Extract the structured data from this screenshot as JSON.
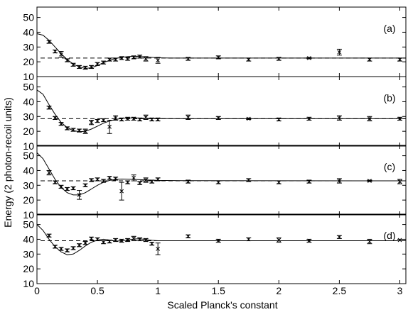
{
  "chart_data": {
    "type": "scatter",
    "xlabel": "Scaled Planck's constant",
    "ylabel": "Energy (2 photon-recoil units)",
    "x_ticks": [
      "0",
      "0.5",
      "1",
      "1.5",
      "2",
      "2.5",
      "3"
    ],
    "y_ticks": [
      "10",
      "20",
      "30",
      "40",
      "50"
    ],
    "xlim": [
      0,
      3.05
    ],
    "ylim": [
      10,
      57
    ],
    "grid": false,
    "panels": [
      {
        "label": "(a)",
        "asymptote": 22.5,
        "curve": [
          [
            0,
            39
          ],
          [
            0.05,
            38
          ],
          [
            0.1,
            34.5
          ],
          [
            0.15,
            30
          ],
          [
            0.2,
            25.5
          ],
          [
            0.25,
            21.5
          ],
          [
            0.3,
            18.5
          ],
          [
            0.35,
            16.5
          ],
          [
            0.4,
            15.5
          ],
          [
            0.45,
            16
          ],
          [
            0.5,
            17.5
          ],
          [
            0.55,
            19.5
          ],
          [
            0.6,
            21
          ],
          [
            0.65,
            22.3
          ],
          [
            0.7,
            23
          ],
          [
            0.75,
            23.5
          ],
          [
            0.8,
            23.7
          ],
          [
            0.85,
            23.6
          ],
          [
            0.9,
            23.3
          ],
          [
            0.95,
            23
          ],
          [
            1.0,
            22.7
          ],
          [
            1.1,
            22.5
          ],
          [
            3.05,
            22.5
          ]
        ],
        "points": [
          {
            "x": 0.1,
            "y": 33.5,
            "err": 1
          },
          {
            "x": 0.15,
            "y": 27,
            "err": 1
          },
          {
            "x": 0.2,
            "y": 25,
            "err": 2
          },
          {
            "x": 0.25,
            "y": 21,
            "err": 1
          },
          {
            "x": 0.3,
            "y": 18,
            "err": 1
          },
          {
            "x": 0.35,
            "y": 16.5,
            "err": 1
          },
          {
            "x": 0.4,
            "y": 16,
            "err": 1
          },
          {
            "x": 0.45,
            "y": 16.5,
            "err": 1
          },
          {
            "x": 0.5,
            "y": 18.5,
            "err": 1
          },
          {
            "x": 0.55,
            "y": 19.5,
            "err": 1
          },
          {
            "x": 0.6,
            "y": 21.5,
            "err": 1
          },
          {
            "x": 0.65,
            "y": 21.5,
            "err": 1
          },
          {
            "x": 0.7,
            "y": 22.5,
            "err": 1
          },
          {
            "x": 0.75,
            "y": 22,
            "err": 1
          },
          {
            "x": 0.8,
            "y": 23,
            "err": 1
          },
          {
            "x": 0.85,
            "y": 23.5,
            "err": 1
          },
          {
            "x": 0.9,
            "y": 22,
            "err": 1.5
          },
          {
            "x": 1.0,
            "y": 21,
            "err": 2
          },
          {
            "x": 1.25,
            "y": 22,
            "err": 1
          },
          {
            "x": 1.5,
            "y": 23,
            "err": 1
          },
          {
            "x": 1.75,
            "y": 21.5,
            "err": 1
          },
          {
            "x": 2.0,
            "y": 22,
            "err": 1
          },
          {
            "x": 2.25,
            "y": 22.5,
            "err": 0.5
          },
          {
            "x": 2.5,
            "y": 26.5,
            "err": 2
          },
          {
            "x": 2.75,
            "y": 21.5,
            "err": 1
          },
          {
            "x": 3.0,
            "y": 21.5,
            "err": 1
          }
        ]
      },
      {
        "label": "(b)",
        "asymptote": 28.5,
        "curve": [
          [
            0,
            48
          ],
          [
            0.05,
            45
          ],
          [
            0.1,
            38
          ],
          [
            0.15,
            31.5
          ],
          [
            0.2,
            26
          ],
          [
            0.25,
            22.5
          ],
          [
            0.3,
            20.5
          ],
          [
            0.35,
            19.7
          ],
          [
            0.4,
            20
          ],
          [
            0.45,
            21.5
          ],
          [
            0.5,
            23.5
          ],
          [
            0.55,
            25.5
          ],
          [
            0.6,
            27
          ],
          [
            0.65,
            28
          ],
          [
            0.7,
            28.7
          ],
          [
            0.75,
            29
          ],
          [
            0.8,
            29
          ],
          [
            0.9,
            28.8
          ],
          [
            1.0,
            28.6
          ],
          [
            1.2,
            28.5
          ],
          [
            3.05,
            28.5
          ]
        ],
        "points": [
          {
            "x": 0.1,
            "y": 36,
            "err": 1
          },
          {
            "x": 0.15,
            "y": 29,
            "err": 1
          },
          {
            "x": 0.2,
            "y": 25,
            "err": 1
          },
          {
            "x": 0.25,
            "y": 22,
            "err": 1
          },
          {
            "x": 0.3,
            "y": 21,
            "err": 1
          },
          {
            "x": 0.35,
            "y": 20.5,
            "err": 1
          },
          {
            "x": 0.4,
            "y": 20,
            "err": 1.5
          },
          {
            "x": 0.45,
            "y": 26,
            "err": 1.5
          },
          {
            "x": 0.5,
            "y": 27,
            "err": 1
          },
          {
            "x": 0.55,
            "y": 27.5,
            "err": 1
          },
          {
            "x": 0.6,
            "y": 23,
            "err": 4.5
          },
          {
            "x": 0.65,
            "y": 29,
            "err": 1.5
          },
          {
            "x": 0.7,
            "y": 28,
            "err": 1
          },
          {
            "x": 0.75,
            "y": 28.5,
            "err": 1
          },
          {
            "x": 0.8,
            "y": 28.5,
            "err": 1
          },
          {
            "x": 0.85,
            "y": 28,
            "err": 1
          },
          {
            "x": 0.9,
            "y": 29.5,
            "err": 1.5
          },
          {
            "x": 0.95,
            "y": 28,
            "err": 1
          },
          {
            "x": 1.0,
            "y": 28,
            "err": 1
          },
          {
            "x": 1.25,
            "y": 29.5,
            "err": 1.5
          },
          {
            "x": 1.5,
            "y": 29,
            "err": 1
          },
          {
            "x": 1.75,
            "y": 28.5,
            "err": 0.5
          },
          {
            "x": 2.0,
            "y": 28,
            "err": 1
          },
          {
            "x": 2.25,
            "y": 28.5,
            "err": 1
          },
          {
            "x": 2.5,
            "y": 29,
            "err": 1.5
          },
          {
            "x": 2.75,
            "y": 28.5,
            "err": 1.5
          },
          {
            "x": 3.0,
            "y": 28.5,
            "err": 1
          }
        ]
      },
      {
        "label": "(c)",
        "asymptote": 33,
        "curve": [
          [
            0,
            52
          ],
          [
            0.05,
            48
          ],
          [
            0.1,
            41
          ],
          [
            0.15,
            34
          ],
          [
            0.2,
            28.5
          ],
          [
            0.25,
            25
          ],
          [
            0.3,
            23.5
          ],
          [
            0.35,
            23.5
          ],
          [
            0.4,
            25
          ],
          [
            0.45,
            27.5
          ],
          [
            0.5,
            30
          ],
          [
            0.55,
            32
          ],
          [
            0.6,
            33.3
          ],
          [
            0.65,
            34
          ],
          [
            0.7,
            34.2
          ],
          [
            0.8,
            34
          ],
          [
            0.9,
            33.6
          ],
          [
            1.0,
            33.3
          ],
          [
            1.2,
            33.1
          ],
          [
            3.05,
            33
          ]
        ],
        "points": [
          {
            "x": 0.1,
            "y": 38.5,
            "err": 1.5
          },
          {
            "x": 0.15,
            "y": 32,
            "err": 1
          },
          {
            "x": 0.2,
            "y": 29,
            "err": 1
          },
          {
            "x": 0.25,
            "y": 27.5,
            "err": 1
          },
          {
            "x": 0.3,
            "y": 28,
            "err": 1
          },
          {
            "x": 0.35,
            "y": 23.5,
            "err": 3
          },
          {
            "x": 0.4,
            "y": 30,
            "err": 1
          },
          {
            "x": 0.45,
            "y": 33.5,
            "err": 1
          },
          {
            "x": 0.5,
            "y": 34,
            "err": 1
          },
          {
            "x": 0.55,
            "y": 33,
            "err": 1
          },
          {
            "x": 0.6,
            "y": 35,
            "err": 1
          },
          {
            "x": 0.65,
            "y": 34.5,
            "err": 1
          },
          {
            "x": 0.7,
            "y": 26,
            "err": 6
          },
          {
            "x": 0.75,
            "y": 32,
            "err": 1
          },
          {
            "x": 0.8,
            "y": 35,
            "err": 2
          },
          {
            "x": 0.85,
            "y": 31.5,
            "err": 1
          },
          {
            "x": 0.9,
            "y": 33.5,
            "err": 1.5
          },
          {
            "x": 0.95,
            "y": 32.5,
            "err": 1
          },
          {
            "x": 1.0,
            "y": 34,
            "err": 1
          },
          {
            "x": 1.25,
            "y": 32.5,
            "err": 1
          },
          {
            "x": 1.5,
            "y": 32,
            "err": 1
          },
          {
            "x": 1.75,
            "y": 33.5,
            "err": 1
          },
          {
            "x": 2.0,
            "y": 32,
            "err": 1
          },
          {
            "x": 2.25,
            "y": 32.5,
            "err": 1
          },
          {
            "x": 2.5,
            "y": 33,
            "err": 1.5
          },
          {
            "x": 2.75,
            "y": 33,
            "err": 0.5
          },
          {
            "x": 3.0,
            "y": 32.5,
            "err": 1.5
          }
        ]
      },
      {
        "label": "(d)",
        "asymptote": 39,
        "curve": [
          [
            0,
            50
          ],
          [
            0.05,
            46
          ],
          [
            0.1,
            40
          ],
          [
            0.15,
            35
          ],
          [
            0.2,
            31.5
          ],
          [
            0.25,
            29.5
          ],
          [
            0.3,
            30
          ],
          [
            0.35,
            32.5
          ],
          [
            0.4,
            35.5
          ],
          [
            0.45,
            38
          ],
          [
            0.5,
            39.5
          ],
          [
            0.55,
            40
          ],
          [
            0.6,
            39.5
          ],
          [
            0.65,
            38.8
          ],
          [
            0.7,
            38.8
          ],
          [
            0.75,
            39.5
          ],
          [
            0.8,
            40.2
          ],
          [
            0.85,
            40.3
          ],
          [
            0.9,
            39.8
          ],
          [
            0.95,
            39.3
          ],
          [
            1.0,
            39
          ],
          [
            3.05,
            39
          ]
        ],
        "points": [
          {
            "x": 0.1,
            "y": 42.5,
            "err": 1
          },
          {
            "x": 0.15,
            "y": 35,
            "err": 1
          },
          {
            "x": 0.2,
            "y": 33.5,
            "err": 1
          },
          {
            "x": 0.25,
            "y": 32.5,
            "err": 1
          },
          {
            "x": 0.3,
            "y": 34,
            "err": 1
          },
          {
            "x": 0.35,
            "y": 36,
            "err": 1
          },
          {
            "x": 0.4,
            "y": 37.5,
            "err": 1
          },
          {
            "x": 0.45,
            "y": 40.5,
            "err": 1
          },
          {
            "x": 0.5,
            "y": 40,
            "err": 1
          },
          {
            "x": 0.55,
            "y": 38,
            "err": 1
          },
          {
            "x": 0.6,
            "y": 38.5,
            "err": 1
          },
          {
            "x": 0.65,
            "y": 39.5,
            "err": 1
          },
          {
            "x": 0.7,
            "y": 39,
            "err": 1
          },
          {
            "x": 0.75,
            "y": 39.5,
            "err": 1
          },
          {
            "x": 0.8,
            "y": 40.5,
            "err": 1.5
          },
          {
            "x": 0.85,
            "y": 40,
            "err": 1
          },
          {
            "x": 0.9,
            "y": 39.5,
            "err": 1
          },
          {
            "x": 0.95,
            "y": 37,
            "err": 1
          },
          {
            "x": 1.0,
            "y": 33.5,
            "err": 4
          },
          {
            "x": 1.25,
            "y": 42,
            "err": 1
          },
          {
            "x": 1.5,
            "y": 39,
            "err": 1
          },
          {
            "x": 1.75,
            "y": 40,
            "err": 1
          },
          {
            "x": 2.0,
            "y": 39.5,
            "err": 1.5
          },
          {
            "x": 2.25,
            "y": 39,
            "err": 1
          },
          {
            "x": 2.5,
            "y": 41.5,
            "err": 1
          },
          {
            "x": 2.75,
            "y": 38.5,
            "err": 1.5
          },
          {
            "x": 3.0,
            "y": 39.5,
            "err": 0.5
          }
        ]
      }
    ]
  }
}
